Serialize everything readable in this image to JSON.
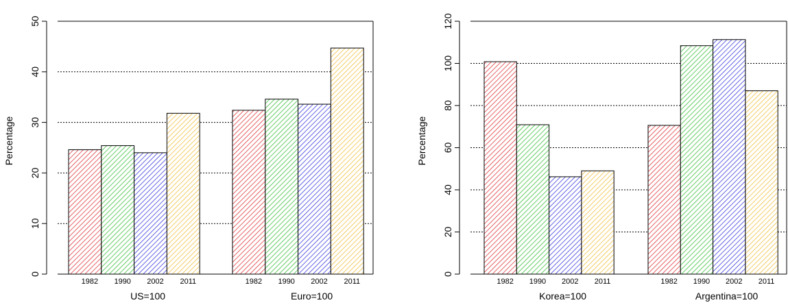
{
  "chart_data": [
    {
      "type": "bar",
      "ylabel": "Percentage",
      "ylim": [
        0,
        50
      ],
      "yticks": [
        "0",
        "10",
        "20",
        "30",
        "40",
        "50"
      ],
      "grid": "horizontal dotted",
      "series_names": [
        "1982",
        "1990",
        "2002",
        "2011"
      ],
      "colors": [
        "#e0393e",
        "#3cc13c",
        "#3c3ce0",
        "#f0c040"
      ],
      "groups": [
        {
          "label": "US=100",
          "values": [
            24.6,
            25.4,
            24.0,
            31.8
          ]
        },
        {
          "label": "Euro=100",
          "values": [
            32.4,
            34.6,
            33.6,
            44.7
          ]
        }
      ]
    },
    {
      "type": "bar",
      "ylabel": "Percentage",
      "ylim": [
        0,
        120
      ],
      "yticks": [
        "0",
        "20",
        "40",
        "60",
        "80",
        "100",
        "120"
      ],
      "grid": "horizontal dotted",
      "series_names": [
        "1982",
        "1990",
        "2002",
        "2011"
      ],
      "colors": [
        "#e0393e",
        "#3cc13c",
        "#3c3ce0",
        "#f0c040"
      ],
      "groups": [
        {
          "label": "Korea=100",
          "values": [
            100.8,
            70.9,
            46.2,
            49.0
          ]
        },
        {
          "label": "Argentina=100",
          "values": [
            70.6,
            108.4,
            111.3,
            87.0
          ]
        }
      ]
    }
  ]
}
